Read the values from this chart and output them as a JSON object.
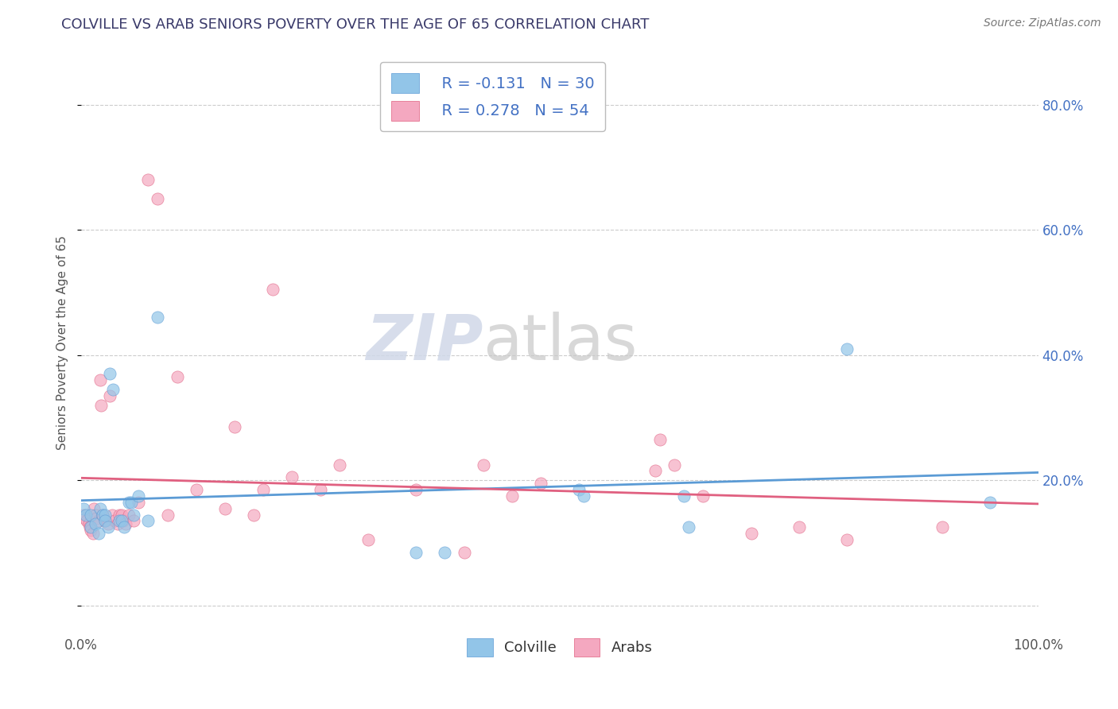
{
  "title": "COLVILLE VS ARAB SENIORS POVERTY OVER THE AGE OF 65 CORRELATION CHART",
  "source": "Source: ZipAtlas.com",
  "ylabel": "Seniors Poverty Over the Age of 65",
  "xlim": [
    0.0,
    1.0
  ],
  "ylim": [
    -0.04,
    0.88
  ],
  "xticks": [
    0.0,
    0.2,
    0.4,
    0.6,
    0.8,
    1.0
  ],
  "xticklabels": [
    "0.0%",
    "",
    "",
    "",
    "",
    "100.0%"
  ],
  "yticks": [
    0.0,
    0.2,
    0.4,
    0.6,
    0.8
  ],
  "yticklabels_right": [
    "",
    "20.0%",
    "40.0%",
    "60.0%",
    "80.0%"
  ],
  "title_color": "#3A3A6A",
  "title_fontsize": 13,
  "source_fontsize": 10,
  "watermark_zip": "ZIP",
  "watermark_atlas": "atlas",
  "legend_r1": "R = -0.131",
  "legend_n1": "N = 30",
  "legend_r2": "R = 0.278",
  "legend_n2": "N = 54",
  "colville_color": "#92C5E8",
  "arab_color": "#F4A8C0",
  "colville_line_color": "#5B9BD5",
  "arab_line_color": "#E06080",
  "grid_color": "#CCCCCC",
  "right_tick_color": "#4472C4",
  "colville_x": [
    0.002,
    0.005,
    0.01,
    0.01,
    0.015,
    0.018,
    0.02,
    0.022,
    0.025,
    0.025,
    0.028,
    0.03,
    0.033,
    0.04,
    0.042,
    0.045,
    0.05,
    0.052,
    0.055,
    0.06,
    0.07,
    0.08,
    0.35,
    0.38,
    0.52,
    0.525,
    0.63,
    0.635,
    0.8,
    0.95
  ],
  "colville_y": [
    0.155,
    0.145,
    0.145,
    0.125,
    0.13,
    0.115,
    0.155,
    0.145,
    0.145,
    0.135,
    0.125,
    0.37,
    0.345,
    0.135,
    0.135,
    0.125,
    0.165,
    0.165,
    0.145,
    0.175,
    0.135,
    0.46,
    0.085,
    0.085,
    0.185,
    0.175,
    0.175,
    0.125,
    0.41,
    0.165
  ],
  "arab_x": [
    0.002,
    0.004,
    0.006,
    0.008,
    0.009,
    0.01,
    0.012,
    0.013,
    0.015,
    0.016,
    0.018,
    0.02,
    0.021,
    0.022,
    0.025,
    0.028,
    0.03,
    0.032,
    0.035,
    0.038,
    0.04,
    0.042,
    0.044,
    0.046,
    0.05,
    0.055,
    0.06,
    0.07,
    0.08,
    0.09,
    0.1,
    0.12,
    0.15,
    0.16,
    0.18,
    0.19,
    0.2,
    0.22,
    0.25,
    0.27,
    0.3,
    0.35,
    0.4,
    0.42,
    0.45,
    0.48,
    0.6,
    0.605,
    0.62,
    0.65,
    0.7,
    0.75,
    0.8,
    0.9
  ],
  "arab_y": [
    0.145,
    0.14,
    0.135,
    0.13,
    0.125,
    0.12,
    0.115,
    0.155,
    0.145,
    0.14,
    0.135,
    0.36,
    0.32,
    0.145,
    0.135,
    0.13,
    0.335,
    0.145,
    0.135,
    0.13,
    0.145,
    0.145,
    0.135,
    0.13,
    0.145,
    0.135,
    0.165,
    0.68,
    0.65,
    0.145,
    0.365,
    0.185,
    0.155,
    0.285,
    0.145,
    0.185,
    0.505,
    0.205,
    0.185,
    0.225,
    0.105,
    0.185,
    0.085,
    0.225,
    0.175,
    0.195,
    0.215,
    0.265,
    0.225,
    0.175,
    0.115,
    0.125,
    0.105,
    0.125
  ],
  "background_color": "#FFFFFF",
  "plot_bg_color": "#FFFFFF"
}
